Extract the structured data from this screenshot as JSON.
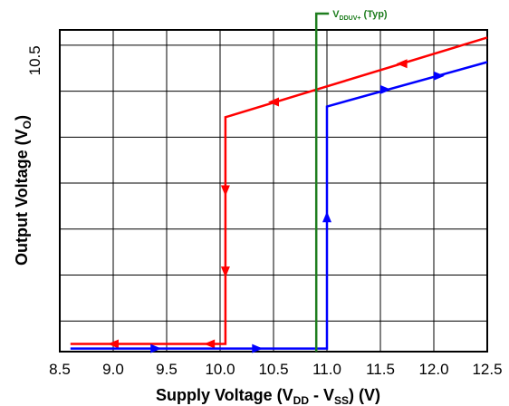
{
  "chart_data": {
    "type": "line",
    "xlabel": {
      "main": "Supply Voltage (V",
      "sub1": "DD",
      "mid": " - V",
      "sub2": "SS",
      "tail": ") (V)"
    },
    "ylabel": {
      "main": "Output Voltage (V",
      "sub": "O",
      "tail": ")"
    },
    "xlim": [
      8.5,
      12.5
    ],
    "x_ticks": [
      "8.5",
      "9.0",
      "9.5",
      "10.0",
      "10.5",
      "11.0",
      "11.5",
      "12.0",
      "12.5"
    ],
    "x_tick_values": [
      8.5,
      9.0,
      9.5,
      10.0,
      10.5,
      11.0,
      11.5,
      12.0,
      12.5
    ],
    "ylim": [
      8.6,
      10.7
    ],
    "y_ticks": [
      "10.5"
    ],
    "y_tick_values": [
      10.5
    ],
    "y_grid_values": [
      8.8,
      9.1,
      9.4,
      9.7,
      10.0,
      10.3,
      10.6
    ],
    "grid": true,
    "series": [
      {
        "color": "#ff0000",
        "points": [
          [
            12.5,
            10.65
          ],
          [
            10.05,
            10.13
          ],
          [
            10.05,
            8.65
          ],
          [
            8.6,
            8.65
          ]
        ],
        "arrows": [
          {
            "x": 11.7,
            "y": 10.48,
            "dir": "left"
          },
          {
            "x": 10.5,
            "y": 10.23,
            "dir": "left"
          },
          {
            "x": 10.05,
            "y": 9.65,
            "dir": "down"
          },
          {
            "x": 10.05,
            "y": 9.12,
            "dir": "down"
          },
          {
            "x": 9.9,
            "y": 8.65,
            "dir": "left"
          },
          {
            "x": 9.0,
            "y": 8.65,
            "dir": "left"
          }
        ]
      },
      {
        "color": "#0000ff",
        "points": [
          [
            8.6,
            8.62
          ],
          [
            11.0,
            8.62
          ],
          [
            11.0,
            10.2
          ],
          [
            12.5,
            10.49
          ]
        ],
        "arrows": [
          {
            "x": 9.4,
            "y": 8.62,
            "dir": "right"
          },
          {
            "x": 10.35,
            "y": 8.62,
            "dir": "right"
          },
          {
            "x": 11.0,
            "y": 9.48,
            "dir": "up"
          },
          {
            "x": 11.55,
            "y": 10.31,
            "dir": "right"
          },
          {
            "x": 12.05,
            "y": 10.4,
            "dir": "right"
          }
        ]
      }
    ],
    "marker": {
      "x": 10.9,
      "color": "#1e7d1e",
      "label": {
        "main": "V",
        "sub": "DDUV+",
        "tail": " (Typ)"
      }
    }
  }
}
